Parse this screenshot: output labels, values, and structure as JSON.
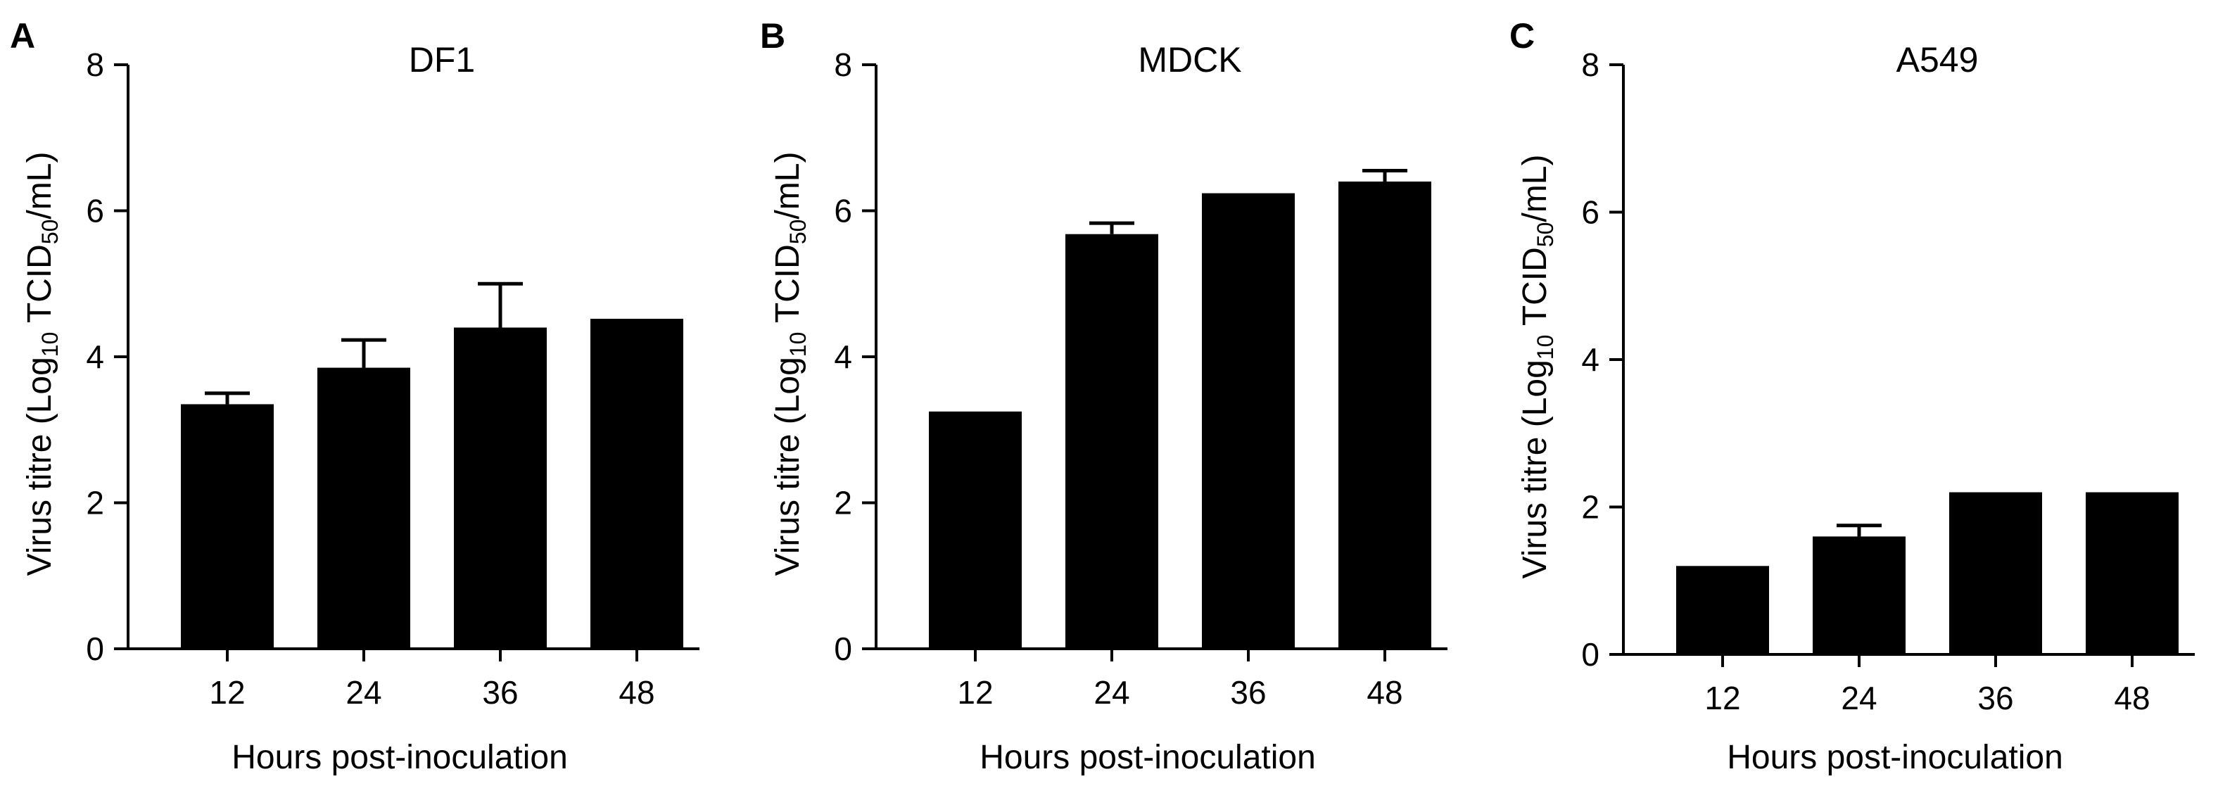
{
  "chart_data": [
    {
      "type": "bar",
      "panel_label": "A",
      "title": "DF1",
      "xlabel": "Hours post-inoculation",
      "ylabel": {
        "main": "Virus titre (Log",
        "sub": "10",
        "mid": " TCID",
        "sub2": "50",
        "end": "/mL)"
      },
      "categories": [
        "12",
        "24",
        "36",
        "48"
      ],
      "values": [
        3.35,
        3.85,
        4.4,
        4.52
      ],
      "errors": [
        0.15,
        0.38,
        0.6,
        0
      ],
      "ylim": [
        0,
        8
      ],
      "yticks": [
        "0",
        "2",
        "4",
        "6",
        "8"
      ],
      "bar_color": "#000000",
      "grid": false
    },
    {
      "type": "bar",
      "panel_label": "B",
      "title": "MDCK",
      "xlabel": "Hours post-inoculation",
      "ylabel": {
        "main": "Virus titre (Log",
        "sub": "10",
        "mid": " TCID",
        "sub2": "50",
        "end": "/mL)"
      },
      "categories": [
        "12",
        "24",
        "36",
        "48"
      ],
      "values": [
        3.25,
        5.68,
        6.24,
        6.4
      ],
      "errors": [
        0,
        0.15,
        0,
        0.15
      ],
      "ylim": [
        0,
        8
      ],
      "yticks": [
        "0",
        "2",
        "4",
        "6",
        "8"
      ],
      "bar_color": "#000000",
      "grid": false
    },
    {
      "type": "bar",
      "panel_label": "C",
      "title": "A549",
      "xlabel": "Hours post-inoculation",
      "ylabel": {
        "main": "Virus titre (Log",
        "sub": "10",
        "mid": " TCID",
        "sub2": "50",
        "end": "/mL)"
      },
      "categories": [
        "12",
        "24",
        "36",
        "48"
      ],
      "values": [
        1.2,
        1.6,
        2.2,
        2.2
      ],
      "errors": [
        0,
        0.15,
        0,
        0
      ],
      "ylim": [
        0,
        8
      ],
      "yticks": [
        "0",
        "2",
        "4",
        "6",
        "8"
      ],
      "bar_color": "#000000",
      "grid": false
    }
  ]
}
